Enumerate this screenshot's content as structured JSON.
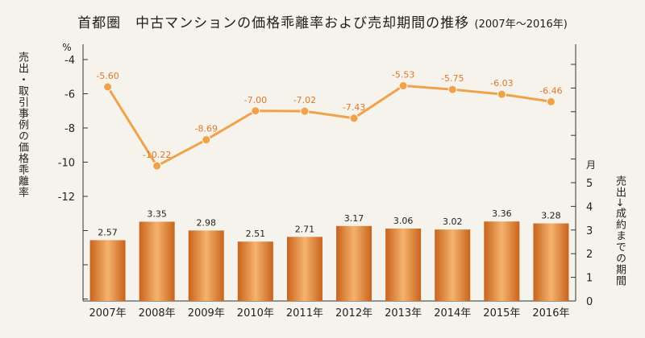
{
  "title": {
    "main": "首都圏　中古マンションの価格乖離率および売却期間の推移",
    "sub": "(2007年〜2016年)"
  },
  "chart_data": {
    "type": "bar+line",
    "categories": [
      "2007年",
      "2008年",
      "2009年",
      "2010年",
      "2011年",
      "2012年",
      "2013年",
      "2014年",
      "2015年",
      "2016年"
    ],
    "series": [
      {
        "type": "line",
        "axis": "left",
        "values": [
          -5.6,
          -10.22,
          -8.69,
          -7.0,
          -7.02,
          -7.43,
          -5.53,
          -5.75,
          -6.03,
          -6.46
        ],
        "labels": [
          "-5.60",
          "-10.22",
          "-8.69",
          "-7.00",
          "-7.02",
          "-7.43",
          "-5.53",
          "-5.75",
          "-6.03",
          "-6.46"
        ]
      },
      {
        "type": "bar",
        "axis": "right",
        "values": [
          2.57,
          3.35,
          2.98,
          2.51,
          2.71,
          3.17,
          3.06,
          3.02,
          3.36,
          3.28
        ],
        "labels": [
          "2.57",
          "3.35",
          "2.98",
          "2.51",
          "2.71",
          "3.17",
          "3.06",
          "3.02",
          "3.36",
          "3.28"
        ]
      }
    ],
    "left_axis": {
      "label": "売出・取引事例の価格乖離率",
      "unit": "%",
      "ticks": [
        -4,
        -6,
        -8,
        -10,
        -12
      ],
      "tick_labels": [
        "-4",
        "-6",
        "-8",
        "-10",
        "-12"
      ],
      "range": [
        -4,
        -12
      ]
    },
    "right_axis": {
      "label": "売出→成約までの期間",
      "unit": "月",
      "ticks": [
        0,
        1,
        2,
        3,
        4,
        5
      ],
      "tick_labels": [
        "0",
        "1",
        "2",
        "3",
        "4",
        "5"
      ],
      "range": [
        0,
        5
      ]
    },
    "colors": {
      "bar_dark": "#c8631c",
      "bar_light": "#f5b36d",
      "line": "#f0a24a",
      "line_label": "#e0782a",
      "axis": "#333333"
    }
  }
}
